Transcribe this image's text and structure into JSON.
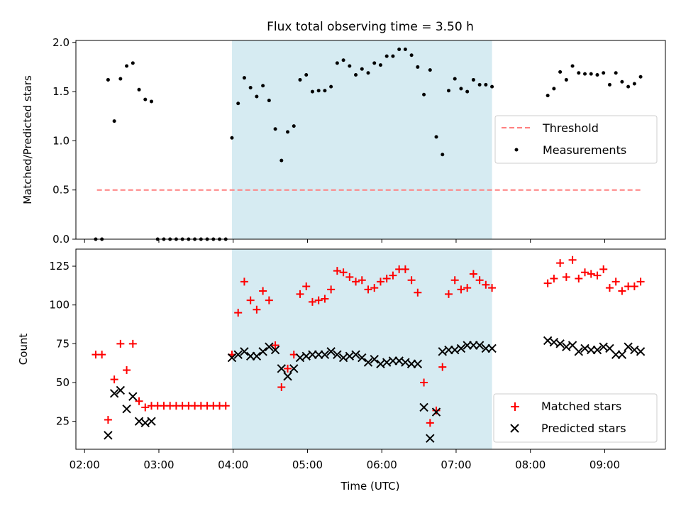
{
  "title": "Flux total observing time = 3.50 h",
  "colors": {
    "threshold": "#ff7f7f",
    "measurement": "#000000",
    "matched": "#ff0000",
    "predicted": "#000000",
    "span": "#add8e6"
  },
  "chart_data": [
    {
      "type": "scatter",
      "panel": "top",
      "ylabel": "Matched/Predicted stars",
      "ylim": [
        0,
        2.02
      ],
      "yticks": [
        "0.0",
        "0.5",
        "1.0",
        "1.5",
        "2.0"
      ],
      "shaded_span": [
        "03:59",
        "07:29"
      ],
      "legend_placement": "right",
      "legend": [
        "Threshold",
        "Measurements"
      ],
      "threshold": {
        "name": "Threshold",
        "y": 0.5,
        "x_start": "02:10",
        "x_end": "09:30"
      },
      "series": [
        {
          "name": "Measurements",
          "points": [
            [
              "02:09",
              0.0
            ],
            [
              "02:14",
              0.0
            ],
            [
              "02:19",
              1.62
            ],
            [
              "02:24",
              1.2
            ],
            [
              "02:29",
              1.63
            ],
            [
              "02:34",
              1.76
            ],
            [
              "02:39",
              1.79
            ],
            [
              "02:44",
              1.52
            ],
            [
              "02:49",
              1.42
            ],
            [
              "02:54",
              1.4
            ],
            [
              "02:59",
              0.0
            ],
            [
              "03:04",
              0.0
            ],
            [
              "03:09",
              0.0
            ],
            [
              "03:14",
              0.0
            ],
            [
              "03:19",
              0.0
            ],
            [
              "03:24",
              0.0
            ],
            [
              "03:29",
              0.0
            ],
            [
              "03:34",
              0.0
            ],
            [
              "03:39",
              0.0
            ],
            [
              "03:44",
              0.0
            ],
            [
              "03:49",
              0.0
            ],
            [
              "03:54",
              0.0
            ],
            [
              "03:59",
              1.03
            ],
            [
              "04:04",
              1.38
            ],
            [
              "04:09",
              1.64
            ],
            [
              "04:14",
              1.54
            ],
            [
              "04:19",
              1.45
            ],
            [
              "04:24",
              1.56
            ],
            [
              "04:29",
              1.41
            ],
            [
              "04:34",
              1.12
            ],
            [
              "04:39",
              0.8
            ],
            [
              "04:44",
              1.09
            ],
            [
              "04:49",
              1.15
            ],
            [
              "04:54",
              1.62
            ],
            [
              "04:59",
              1.67
            ],
            [
              "05:04",
              1.5
            ],
            [
              "05:09",
              1.51
            ],
            [
              "05:14",
              1.51
            ],
            [
              "05:19",
              1.55
            ],
            [
              "05:24",
              1.79
            ],
            [
              "05:29",
              1.82
            ],
            [
              "05:34",
              1.76
            ],
            [
              "05:39",
              1.67
            ],
            [
              "05:44",
              1.73
            ],
            [
              "05:49",
              1.69
            ],
            [
              "05:54",
              1.79
            ],
            [
              "05:59",
              1.77
            ],
            [
              "06:04",
              1.86
            ],
            [
              "06:09",
              1.86
            ],
            [
              "06:14",
              1.93
            ],
            [
              "06:19",
              1.93
            ],
            [
              "06:24",
              1.87
            ],
            [
              "06:29",
              1.75
            ],
            [
              "06:34",
              1.47
            ],
            [
              "06:39",
              1.72
            ],
            [
              "06:44",
              1.04
            ],
            [
              "06:49",
              0.86
            ],
            [
              "06:54",
              1.51
            ],
            [
              "06:59",
              1.63
            ],
            [
              "07:04",
              1.53
            ],
            [
              "07:09",
              1.5
            ],
            [
              "07:14",
              1.62
            ],
            [
              "07:19",
              1.57
            ],
            [
              "07:24",
              1.57
            ],
            [
              "07:29",
              1.55
            ],
            [
              "08:14",
              1.46
            ],
            [
              "08:19",
              1.53
            ],
            [
              "08:24",
              1.7
            ],
            [
              "08:29",
              1.62
            ],
            [
              "08:34",
              1.76
            ],
            [
              "08:39",
              1.69
            ],
            [
              "08:44",
              1.68
            ],
            [
              "08:49",
              1.68
            ],
            [
              "08:54",
              1.67
            ],
            [
              "08:59",
              1.69
            ],
            [
              "09:04",
              1.57
            ],
            [
              "09:09",
              1.69
            ],
            [
              "09:14",
              1.6
            ],
            [
              "09:19",
              1.55
            ],
            [
              "09:24",
              1.58
            ],
            [
              "09:29",
              1.65
            ]
          ]
        }
      ]
    },
    {
      "type": "scatter",
      "panel": "bottom",
      "xlabel": "Time (UTC)",
      "ylabel": "Count",
      "xlim": [
        "01:53",
        "09:49"
      ],
      "ylim": [
        7,
        136
      ],
      "xticks": [
        "02:00",
        "03:00",
        "04:00",
        "05:00",
        "06:00",
        "07:00",
        "08:00",
        "09:00"
      ],
      "yticks": [
        "25",
        "50",
        "75",
        "100",
        "125"
      ],
      "shaded_span": [
        "03:59",
        "07:29"
      ],
      "legend_placement": "lower right",
      "legend": [
        "Matched stars",
        "Predicted stars"
      ],
      "series": [
        {
          "name": "Matched stars",
          "marker": "+",
          "points": [
            [
              "02:09",
              68
            ],
            [
              "02:14",
              68
            ],
            [
              "02:19",
              26
            ],
            [
              "02:24",
              52
            ],
            [
              "02:29",
              75
            ],
            [
              "02:34",
              58
            ],
            [
              "02:39",
              75
            ],
            [
              "02:44",
              38
            ],
            [
              "02:49",
              34
            ],
            [
              "02:54",
              35
            ],
            [
              "02:59",
              35
            ],
            [
              "03:04",
              35
            ],
            [
              "03:09",
              35
            ],
            [
              "03:14",
              35
            ],
            [
              "03:19",
              35
            ],
            [
              "03:24",
              35
            ],
            [
              "03:29",
              35
            ],
            [
              "03:34",
              35
            ],
            [
              "03:39",
              35
            ],
            [
              "03:44",
              35
            ],
            [
              "03:49",
              35
            ],
            [
              "03:54",
              35
            ],
            [
              "03:59",
              68
            ],
            [
              "04:04",
              95
            ],
            [
              "04:09",
              115
            ],
            [
              "04:14",
              103
            ],
            [
              "04:19",
              97
            ],
            [
              "04:24",
              109
            ],
            [
              "04:29",
              103
            ],
            [
              "04:34",
              74
            ],
            [
              "04:39",
              47
            ],
            [
              "04:44",
              59
            ],
            [
              "04:49",
              68
            ],
            [
              "04:54",
              107
            ],
            [
              "04:59",
              112
            ],
            [
              "05:04",
              102
            ],
            [
              "05:09",
              103
            ],
            [
              "05:14",
              104
            ],
            [
              "05:19",
              110
            ],
            [
              "05:24",
              122
            ],
            [
              "05:29",
              121
            ],
            [
              "05:34",
              118
            ],
            [
              "05:39",
              115
            ],
            [
              "05:44",
              116
            ],
            [
              "05:49",
              110
            ],
            [
              "05:54",
              111
            ],
            [
              "05:59",
              115
            ],
            [
              "06:04",
              117
            ],
            [
              "06:09",
              119
            ],
            [
              "06:14",
              123
            ],
            [
              "06:19",
              123
            ],
            [
              "06:24",
              116
            ],
            [
              "06:29",
              108
            ],
            [
              "06:34",
              50
            ],
            [
              "06:39",
              24
            ],
            [
              "06:44",
              32
            ],
            [
              "06:49",
              60
            ],
            [
              "06:54",
              107
            ],
            [
              "06:59",
              116
            ],
            [
              "07:04",
              110
            ],
            [
              "07:09",
              111
            ],
            [
              "07:14",
              120
            ],
            [
              "07:19",
              116
            ],
            [
              "07:24",
              113
            ],
            [
              "07:29",
              111
            ],
            [
              "08:14",
              114
            ],
            [
              "08:19",
              117
            ],
            [
              "08:24",
              127
            ],
            [
              "08:29",
              118
            ],
            [
              "08:34",
              129
            ],
            [
              "08:39",
              117
            ],
            [
              "08:44",
              121
            ],
            [
              "08:49",
              120
            ],
            [
              "08:54",
              119
            ],
            [
              "08:59",
              123
            ],
            [
              "09:04",
              111
            ],
            [
              "09:09",
              115
            ],
            [
              "09:14",
              109
            ],
            [
              "09:19",
              112
            ],
            [
              "09:24",
              112
            ],
            [
              "09:29",
              115
            ]
          ]
        },
        {
          "name": "Predicted stars",
          "marker": "x",
          "points": [
            [
              "02:19",
              16
            ],
            [
              "02:24",
              43
            ],
            [
              "02:29",
              45
            ],
            [
              "02:34",
              33
            ],
            [
              "02:39",
              41
            ],
            [
              "02:44",
              25
            ],
            [
              "02:49",
              24
            ],
            [
              "02:54",
              25
            ],
            [
              "03:59",
              66
            ],
            [
              "04:04",
              68
            ],
            [
              "04:09",
              70
            ],
            [
              "04:14",
              67
            ],
            [
              "04:19",
              67
            ],
            [
              "04:24",
              70
            ],
            [
              "04:29",
              73
            ],
            [
              "04:34",
              71
            ],
            [
              "04:39",
              59
            ],
            [
              "04:44",
              54
            ],
            [
              "04:49",
              59
            ],
            [
              "04:54",
              66
            ],
            [
              "04:59",
              67
            ],
            [
              "05:04",
              68
            ],
            [
              "05:09",
              68
            ],
            [
              "05:14",
              68
            ],
            [
              "05:19",
              70
            ],
            [
              "05:24",
              68
            ],
            [
              "05:29",
              66
            ],
            [
              "05:34",
              67
            ],
            [
              "05:39",
              68
            ],
            [
              "05:44",
              66
            ],
            [
              "05:49",
              63
            ],
            [
              "05:54",
              65
            ],
            [
              "05:59",
              62
            ],
            [
              "06:04",
              63
            ],
            [
              "06:09",
              64
            ],
            [
              "06:14",
              64
            ],
            [
              "06:19",
              63
            ],
            [
              "06:24",
              62
            ],
            [
              "06:29",
              62
            ],
            [
              "06:34",
              34
            ],
            [
              "06:39",
              14
            ],
            [
              "06:44",
              31
            ],
            [
              "06:49",
              70
            ],
            [
              "06:54",
              71
            ],
            [
              "06:59",
              71
            ],
            [
              "07:04",
              72
            ],
            [
              "07:09",
              74
            ],
            [
              "07:14",
              74
            ],
            [
              "07:19",
              74
            ],
            [
              "07:24",
              72
            ],
            [
              "07:29",
              72
            ],
            [
              "08:14",
              77
            ],
            [
              "08:19",
              76
            ],
            [
              "08:24",
              75
            ],
            [
              "08:29",
              73
            ],
            [
              "08:34",
              74
            ],
            [
              "08:39",
              70
            ],
            [
              "08:44",
              72
            ],
            [
              "08:49",
              71
            ],
            [
              "08:54",
              71
            ],
            [
              "08:59",
              73
            ],
            [
              "09:04",
              72
            ],
            [
              "09:09",
              68
            ],
            [
              "09:14",
              68
            ],
            [
              "09:19",
              73
            ],
            [
              "09:24",
              71
            ],
            [
              "09:29",
              70
            ]
          ]
        }
      ]
    }
  ]
}
